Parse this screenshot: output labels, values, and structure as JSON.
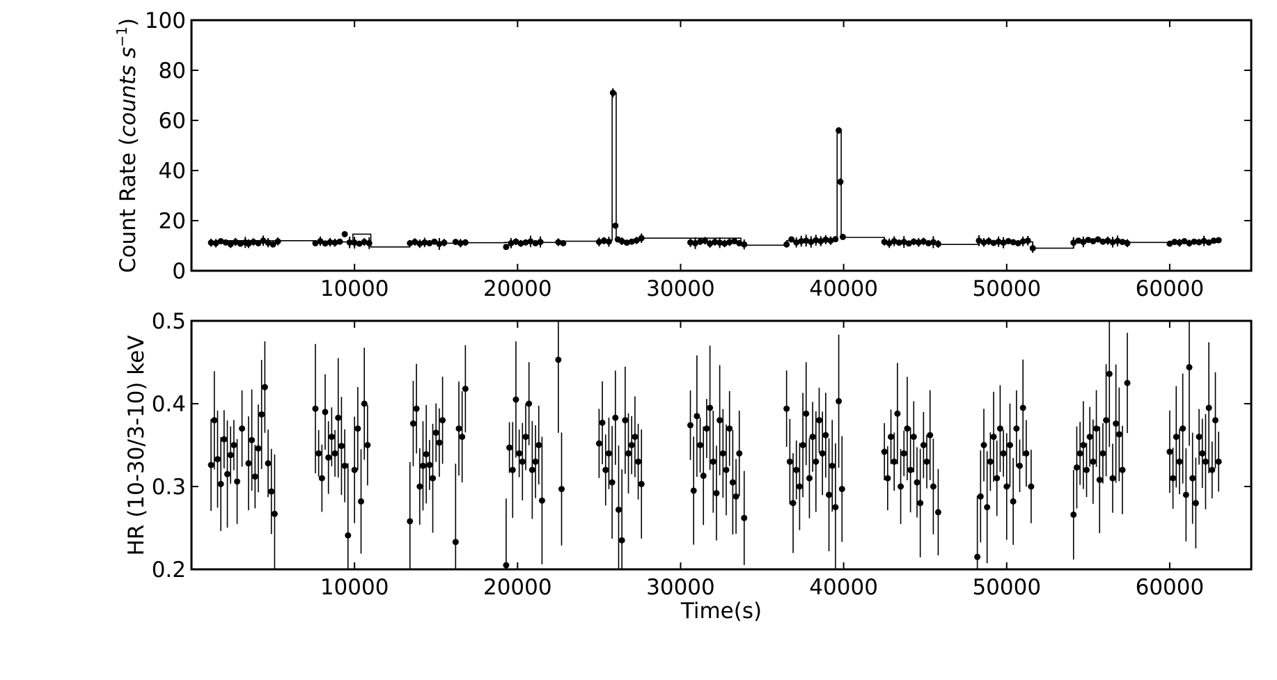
{
  "figure": {
    "colors": {
      "ink": "#000000",
      "background": "#ffffff"
    }
  },
  "chart_data": [
    {
      "type": "scatter",
      "xlabel": "",
      "ylabel_prefix": "Count Rate (",
      "ylabel_unit": "counts s",
      "ylabel_exponent": "−1",
      "ylabel_suffix": ")",
      "xlim": [
        0,
        65000
      ],
      "ylim": [
        0,
        100
      ],
      "xticks": [
        10000,
        20000,
        30000,
        40000,
        50000,
        60000
      ],
      "xtick_labels": [
        "10000",
        "20000",
        "30000",
        "40000",
        "50000",
        "60000"
      ],
      "yticks": [
        0,
        20,
        40,
        60,
        80,
        100
      ],
      "ytick_labels": [
        "0",
        "20",
        "40",
        "60",
        "80",
        "100"
      ],
      "grid": false,
      "marker": "circle",
      "error_bars": true,
      "step_line": true,
      "segments": [
        {
          "x": [
            1200,
            1500,
            1800,
            2100,
            2400,
            2700,
            3000,
            3300
          ],
          "y": [
            11.2,
            11.0,
            11.8,
            11.3,
            10.6,
            11.5,
            10.8,
            11.3
          ]
        },
        {
          "x": [
            3500,
            3800,
            4100,
            4400,
            4700,
            5000,
            5300
          ],
          "y": [
            10.8,
            11.5,
            11.0,
            12.0,
            11.2,
            10.5,
            11.7
          ]
        },
        {
          "x": [
            7600,
            7900,
            8200,
            8500,
            8800,
            9100,
            9400,
            9700
          ],
          "y": [
            11.0,
            11.8,
            10.9,
            11.4,
            11.2,
            11.6,
            14.6,
            11.3
          ]
        },
        {
          "x": [
            10000,
            10300,
            10600,
            10900
          ],
          "y": [
            11.2,
            10.8,
            11.5,
            11.0
          ]
        },
        {
          "x": [
            13400,
            13700,
            14000,
            14300,
            14600,
            14900,
            15200,
            15500
          ],
          "y": [
            11.0,
            11.5,
            10.8,
            11.3,
            11.0,
            11.6,
            10.7,
            11.2
          ]
        },
        {
          "x": [
            16200,
            16500,
            16800
          ],
          "y": [
            11.5,
            11.0,
            11.3
          ]
        },
        {
          "x": [
            19300,
            19600,
            19900,
            20200,
            20500,
            20800,
            21100,
            21400
          ],
          "y": [
            9.5,
            11.0,
            11.6,
            10.9,
            11.3,
            11.7,
            11.0,
            11.5
          ]
        },
        {
          "x": [
            22500,
            22800
          ],
          "y": [
            11.4,
            11.0
          ]
        },
        {
          "x": [
            25000,
            25300,
            25600,
            25850,
            26000,
            26150,
            26400,
            26700,
            27000,
            27300,
            27600
          ],
          "y": [
            11.5,
            12.0,
            11.6,
            71.0,
            18.0,
            12.5,
            11.8,
            11.2,
            11.6,
            12.1,
            13.0
          ]
        },
        {
          "x": [
            30600,
            30900,
            31200,
            31500,
            31800,
            32100,
            32400,
            32700,
            33000,
            33300,
            33600,
            33900
          ],
          "y": [
            11.3,
            11.0,
            11.6,
            12.0,
            10.8,
            11.5,
            11.2,
            10.9,
            11.4,
            11.8,
            11.0,
            10.5
          ]
        },
        {
          "x": [
            36500,
            36800,
            37100,
            37400,
            37700,
            38000,
            38300,
            38600,
            38900,
            39200,
            39500,
            39700,
            39800,
            39950
          ],
          "y": [
            10.5,
            12.5,
            11.3,
            11.8,
            12.0,
            11.5,
            12.2,
            11.8,
            12.4,
            12.0,
            12.6,
            56.0,
            35.5,
            13.5
          ]
        },
        {
          "x": [
            42500,
            42800,
            43100,
            43400,
            43700,
            44000,
            44300,
            44600,
            44900,
            45200,
            45500,
            45800
          ],
          "y": [
            11.5,
            11.0,
            11.8,
            11.2,
            11.5,
            10.9,
            11.6,
            11.3,
            11.7,
            11.0,
            11.4,
            10.7
          ]
        },
        {
          "x": [
            48300,
            48600,
            48900,
            49200,
            49500,
            49800,
            50100,
            50400,
            50700,
            51000,
            51300,
            51600
          ],
          "y": [
            12.0,
            11.3,
            11.8,
            11.1,
            11.6,
            11.2,
            11.8,
            11.4,
            11.0,
            11.7,
            12.0,
            9.0
          ]
        },
        {
          "x": [
            54100,
            54400,
            54700,
            55000,
            55300,
            55600,
            55900,
            56200,
            56500,
            56800,
            57100,
            57400
          ],
          "y": [
            11.2,
            12.0,
            11.5,
            12.3,
            11.8,
            12.5,
            11.6,
            12.0,
            11.4,
            11.9,
            11.5,
            11.0
          ]
        },
        {
          "x": [
            60000,
            60300,
            60600,
            60900,
            61200,
            61500,
            61800,
            62100,
            62400,
            62700,
            63000
          ],
          "y": [
            10.8,
            11.5,
            11.2,
            11.8,
            11.0,
            11.6,
            11.4,
            11.9,
            11.3,
            12.0,
            12.2
          ]
        }
      ],
      "steps": [
        {
          "x": [
            1500,
            7500
          ],
          "y": 12.0
        },
        {
          "x": [
            7500,
            9900
          ],
          "y": 11.5
        },
        {
          "x": [
            9900,
            11000
          ],
          "y": 14.6
        },
        {
          "x": [
            11000,
            13400
          ],
          "y": 9.5
        },
        {
          "x": [
            13400,
            16100
          ],
          "y": 11.0
        },
        {
          "x": [
            16100,
            19200
          ],
          "y": 11.2
        },
        {
          "x": [
            19200,
            22400
          ],
          "y": 11.3
        },
        {
          "x": [
            22400,
            25000
          ],
          "y": 11.8
        },
        {
          "x": [
            25000,
            25800
          ],
          "y": 12.2
        },
        {
          "x": [
            25800,
            26050
          ],
          "y": 71.0
        },
        {
          "x": [
            26050,
            27500
          ],
          "y": 12.0
        },
        {
          "x": [
            27500,
            33700
          ],
          "y": 13.0
        },
        {
          "x": [
            33700,
            36500
          ],
          "y": 10.2
        },
        {
          "x": [
            36500,
            39600
          ],
          "y": 12.0
        },
        {
          "x": [
            39600,
            39850
          ],
          "y": 56.0
        },
        {
          "x": [
            39850,
            42500
          ],
          "y": 13.3
        },
        {
          "x": [
            42500,
            45800
          ],
          "y": 11.5
        },
        {
          "x": [
            45800,
            48300
          ],
          "y": 10.5
        },
        {
          "x": [
            48300,
            51600
          ],
          "y": 11.5
        },
        {
          "x": [
            51600,
            54100
          ],
          "y": 9.0
        },
        {
          "x": [
            54100,
            57400
          ],
          "y": 12.0
        },
        {
          "x": [
            57400,
            63100
          ],
          "y": 11.3
        }
      ]
    },
    {
      "type": "scatter",
      "xlabel": "Time(s)",
      "ylabel": "HR (10-30/3-10) keV",
      "xlim": [
        0,
        65000
      ],
      "ylim": [
        0.2,
        0.5
      ],
      "xticks": [
        10000,
        20000,
        30000,
        40000,
        50000,
        60000
      ],
      "xtick_labels": [
        "10000",
        "20000",
        "30000",
        "40000",
        "50000",
        "60000"
      ],
      "yticks": [
        0.2,
        0.3,
        0.4,
        0.5
      ],
      "ytick_labels": [
        "0.2",
        "0.3",
        "0.4",
        "0.5"
      ],
      "grid": false,
      "marker": "circle",
      "error_bars": true,
      "points": {
        "x": [
          1200,
          1400,
          1600,
          1800,
          2000,
          2200,
          2400,
          2600,
          2800,
          3100,
          3500,
          3700,
          3900,
          4100,
          4300,
          4500,
          4700,
          4900,
          5100,
          7600,
          7800,
          8000,
          8200,
          8400,
          8600,
          8800,
          9000,
          9200,
          9400,
          9600,
          10000,
          10200,
          10400,
          10600,
          10800,
          13400,
          13600,
          13800,
          14000,
          14200,
          14400,
          14600,
          14800,
          15000,
          15200,
          15400,
          16200,
          16400,
          16600,
          16800,
          19300,
          19500,
          19700,
          19900,
          20100,
          20300,
          20500,
          20700,
          20900,
          21100,
          21300,
          21500,
          22500,
          22700,
          25000,
          25200,
          25400,
          25600,
          25800,
          26000,
          26200,
          26400,
          26600,
          26800,
          27000,
          27200,
          27400,
          27600,
          30600,
          30800,
          31000,
          31200,
          31400,
          31600,
          31800,
          32000,
          32200,
          32400,
          32600,
          32800,
          33000,
          33200,
          33400,
          33600,
          33900,
          36500,
          36700,
          36900,
          37100,
          37300,
          37500,
          37700,
          37900,
          38100,
          38300,
          38500,
          38700,
          38900,
          39100,
          39300,
          39500,
          39700,
          39900,
          42500,
          42700,
          42900,
          43100,
          43300,
          43500,
          43700,
          43900,
          44100,
          44300,
          44500,
          44700,
          44900,
          45100,
          45300,
          45500,
          45800,
          48200,
          48400,
          48600,
          48800,
          49000,
          49200,
          49400,
          49600,
          49800,
          50000,
          50200,
          50400,
          50600,
          50800,
          51000,
          51200,
          51500,
          54100,
          54300,
          54500,
          54700,
          54900,
          55100,
          55300,
          55500,
          55700,
          55900,
          56100,
          56300,
          56500,
          56700,
          56900,
          57100,
          57400,
          60000,
          60200,
          60400,
          60600,
          60800,
          61000,
          61200,
          61400,
          61600,
          61800,
          62000,
          62200,
          62400,
          62600,
          62800,
          63000
        ],
        "y": [
          0.326,
          0.38,
          0.333,
          0.303,
          0.357,
          0.315,
          0.338,
          0.35,
          0.306,
          0.37,
          0.328,
          0.356,
          0.312,
          0.346,
          0.387,
          0.42,
          0.328,
          0.294,
          0.267,
          0.394,
          0.34,
          0.31,
          0.39,
          0.335,
          0.36,
          0.34,
          0.383,
          0.349,
          0.325,
          0.241,
          0.32,
          0.37,
          0.282,
          0.4,
          0.35,
          0.258,
          0.376,
          0.394,
          0.3,
          0.325,
          0.339,
          0.326,
          0.31,
          0.365,
          0.353,
          0.38,
          0.233,
          0.37,
          0.36,
          0.418,
          0.205,
          0.347,
          0.32,
          0.405,
          0.34,
          0.33,
          0.36,
          0.4,
          0.32,
          0.33,
          0.35,
          0.283,
          0.453,
          0.297,
          0.352,
          0.377,
          0.32,
          0.34,
          0.305,
          0.383,
          0.272,
          0.235,
          0.38,
          0.34,
          0.35,
          0.36,
          0.33,
          0.303,
          0.374,
          0.295,
          0.385,
          0.35,
          0.313,
          0.37,
          0.395,
          0.33,
          0.292,
          0.38,
          0.34,
          0.32,
          0.37,
          0.305,
          0.288,
          0.34,
          0.262,
          0.394,
          0.33,
          0.28,
          0.32,
          0.3,
          0.35,
          0.388,
          0.31,
          0.36,
          0.33,
          0.38,
          0.34,
          0.362,
          0.29,
          0.325,
          0.275,
          0.403,
          0.297,
          0.342,
          0.31,
          0.36,
          0.33,
          0.388,
          0.3,
          0.34,
          0.37,
          0.32,
          0.36,
          0.305,
          0.28,
          0.35,
          0.33,
          0.362,
          0.3,
          0.269,
          0.215,
          0.288,
          0.35,
          0.275,
          0.33,
          0.36,
          0.31,
          0.37,
          0.34,
          0.3,
          0.35,
          0.282,
          0.37,
          0.325,
          0.395,
          0.34,
          0.3,
          0.266,
          0.323,
          0.34,
          0.35,
          0.32,
          0.36,
          0.33,
          0.37,
          0.308,
          0.34,
          0.38,
          0.436,
          0.31,
          0.376,
          0.363,
          0.32,
          0.425,
          0.342,
          0.31,
          0.36,
          0.33,
          0.37,
          0.29,
          0.444,
          0.31,
          0.28,
          0.36,
          0.34,
          0.33,
          0.395,
          0.32,
          0.38,
          0.33
        ]
      }
    }
  ]
}
